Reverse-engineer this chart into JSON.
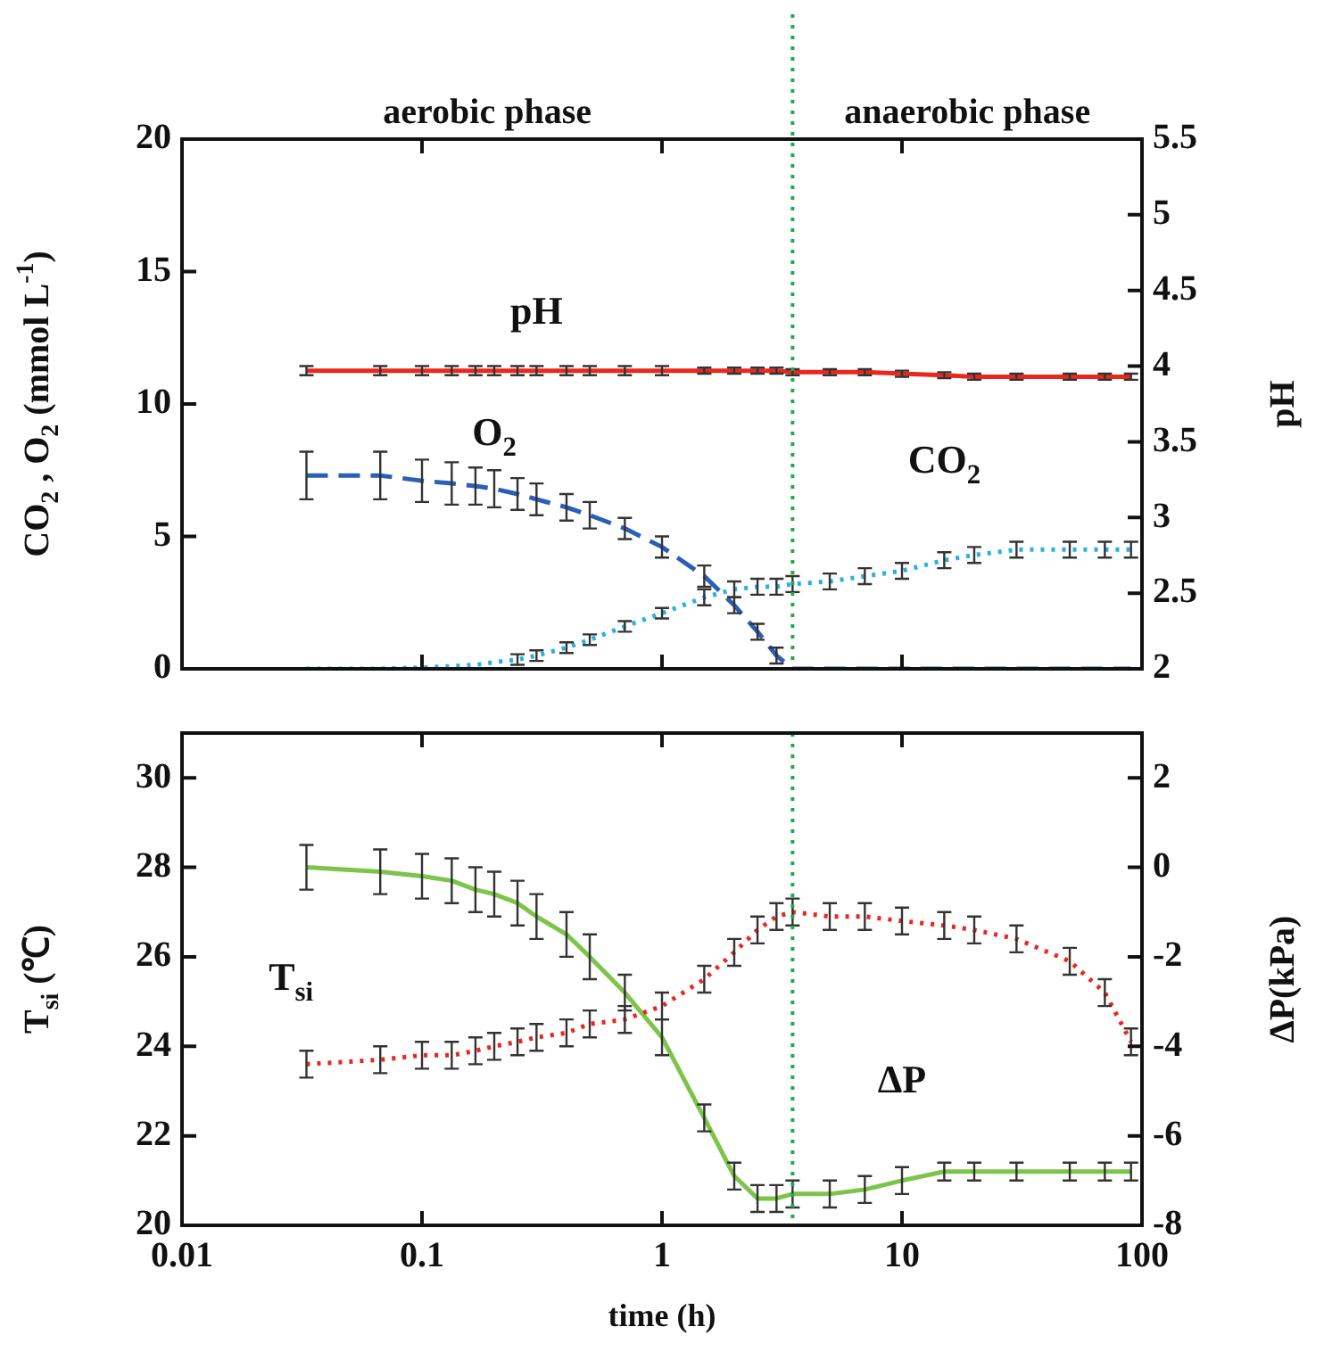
{
  "chart_data": [
    {
      "type": "line",
      "ylabel": "CO$_{2}$ , O$_{2}$ (mmol L$^{-1}$)",
      "y2label": "pH",
      "log": "x",
      "tick_labels": "y",
      "x": [
        0.033,
        0.067,
        0.1,
        0.133,
        0.167,
        0.2,
        0.25,
        0.3,
        0.4,
        0.5,
        0.7,
        1,
        1.5,
        2,
        2.5,
        3,
        3.5,
        5,
        7,
        10,
        15,
        20,
        30,
        50,
        70,
        90
      ],
      "xlim": [
        0.01,
        100
      ],
      "xticks": [
        0.01,
        0.1,
        1,
        10,
        100
      ],
      "ylim": [
        0,
        20
      ],
      "yticks": [
        0,
        5,
        10,
        15,
        20
      ],
      "y2lim": [
        2,
        5.5
      ],
      "y2ticks": [
        2,
        2.5,
        3,
        3.5,
        4,
        4.5,
        5,
        5.5
      ],
      "series": [
        {
          "name": "pH",
          "color": "#e8281e",
          "axis": "y2",
          "line_style": "solid",
          "values": [
            3.97,
            3.97,
            3.97,
            3.97,
            3.97,
            3.97,
            3.97,
            3.97,
            3.97,
            3.97,
            3.97,
            3.97,
            3.97,
            3.97,
            3.97,
            3.97,
            3.96,
            3.96,
            3.96,
            3.95,
            3.94,
            3.93,
            3.93,
            3.93,
            3.93,
            3.93
          ],
          "errors": [
            0.03,
            0.03,
            0.03,
            0.03,
            0.03,
            0.03,
            0.03,
            0.03,
            0.03,
            0.03,
            0.03,
            0.03,
            0.02,
            0.02,
            0.02,
            0.02,
            0.02,
            0.02,
            0.02,
            0.02,
            0.02,
            0.02,
            0.02,
            0.02,
            0.02,
            0.02
          ]
        },
        {
          "name": "O$_{2}$",
          "color": "#2a5fb8",
          "axis": "y",
          "line_style": "dashed",
          "values": [
            7.3,
            7.3,
            7.1,
            7.0,
            6.9,
            6.8,
            6.6,
            6.4,
            6.1,
            5.8,
            5.3,
            4.6,
            3.5,
            2.4,
            1.4,
            0.5,
            0,
            0,
            0,
            0,
            0,
            0,
            0,
            0,
            0,
            0
          ],
          "errors": [
            0.9,
            0.9,
            0.8,
            0.8,
            0.7,
            0.7,
            0.6,
            0.6,
            0.5,
            0.5,
            0.4,
            0.4,
            0.4,
            0.3,
            0.3,
            0.3,
            null,
            null,
            null,
            null,
            null,
            null,
            null,
            null,
            null,
            null
          ]
        },
        {
          "name": "CO$_{2}$",
          "color": "#2ab0e0",
          "axis": "y",
          "line_style": "dotted",
          "values": [
            0,
            0,
            0.05,
            0.1,
            0.15,
            0.25,
            0.35,
            0.5,
            0.8,
            1.1,
            1.6,
            2.1,
            2.7,
            3.0,
            3.1,
            3.1,
            3.2,
            3.3,
            3.5,
            3.7,
            4.1,
            4.3,
            4.5,
            4.5,
            4.5,
            4.5
          ],
          "errors": [
            null,
            null,
            null,
            null,
            null,
            null,
            0.2,
            0.2,
            0.2,
            0.2,
            0.2,
            0.2,
            0.3,
            0.3,
            0.3,
            0.3,
            0.3,
            0.3,
            0.3,
            0.3,
            0.3,
            0.3,
            0.3,
            0.3,
            0.3,
            0.3
          ]
        }
      ],
      "ref_lines": [
        {
          "axis": "x",
          "value": 3.5,
          "color": "#22aa44",
          "line_style": "dotted"
        }
      ],
      "annotations": [
        "aerobic phase",
        "anaerobic phase"
      ]
    },
    {
      "type": "line",
      "xlabel": "time (h)",
      "ylabel": "T$_{si}$ (℃)",
      "y2label": "ΔP(kPa)",
      "log": "x",
      "x": [
        0.033,
        0.067,
        0.1,
        0.133,
        0.167,
        0.2,
        0.25,
        0.3,
        0.4,
        0.5,
        0.7,
        1,
        1.5,
        2,
        2.5,
        3,
        3.5,
        5,
        7,
        10,
        15,
        20,
        30,
        50,
        70,
        90
      ],
      "xlim": [
        0.01,
        100
      ],
      "xticks": [
        0.01,
        0.1,
        1,
        10,
        100
      ],
      "ylim": [
        20,
        31
      ],
      "yticks": [
        20,
        22,
        24,
        26,
        28,
        30
      ],
      "y2lim": [
        -8,
        3
      ],
      "y2ticks": [
        -8,
        -6,
        -4,
        -2,
        0,
        2
      ],
      "series": [
        {
          "name": "T$_{si}$",
          "color": "#e8281e",
          "axis": "y",
          "line_style": "dotted",
          "values": [
            23.6,
            23.7,
            23.8,
            23.8,
            23.9,
            24.0,
            24.1,
            24.2,
            24.3,
            24.5,
            24.6,
            24.9,
            25.5,
            26.1,
            26.6,
            26.9,
            27.0,
            26.9,
            26.9,
            26.8,
            26.7,
            26.6,
            26.4,
            25.9,
            25.2,
            24.1
          ],
          "errors": [
            0.3,
            0.3,
            0.3,
            0.3,
            0.3,
            0.3,
            0.3,
            0.3,
            0.3,
            0.3,
            0.3,
            0.3,
            0.3,
            0.3,
            0.3,
            0.3,
            0.3,
            0.3,
            0.3,
            0.3,
            0.3,
            0.3,
            0.3,
            0.3,
            0.3,
            0.3
          ]
        },
        {
          "name": "ΔP",
          "color": "#7cc44a",
          "axis": "y2",
          "line_style": "solid",
          "values": [
            0,
            -0.1,
            -0.2,
            -0.3,
            -0.5,
            -0.6,
            -0.8,
            -1.1,
            -1.5,
            -2.0,
            -2.8,
            -3.8,
            -5.6,
            -6.9,
            -7.4,
            -7.4,
            -7.3,
            -7.3,
            -7.2,
            -7.0,
            -6.8,
            -6.8,
            -6.8,
            -6.8,
            -6.8,
            -6.8
          ],
          "errors": [
            0.5,
            0.5,
            0.5,
            0.5,
            0.5,
            0.5,
            0.5,
            0.5,
            0.5,
            0.5,
            0.4,
            0.4,
            0.3,
            0.3,
            0.3,
            0.3,
            0.3,
            0.3,
            0.3,
            0.3,
            0.2,
            0.2,
            0.2,
            0.2,
            0.2,
            0.2
          ]
        }
      ],
      "ref_lines": [
        {
          "axis": "x",
          "value": 3.5,
          "color": "#22aa44",
          "line_style": "dotted"
        }
      ]
    }
  ]
}
